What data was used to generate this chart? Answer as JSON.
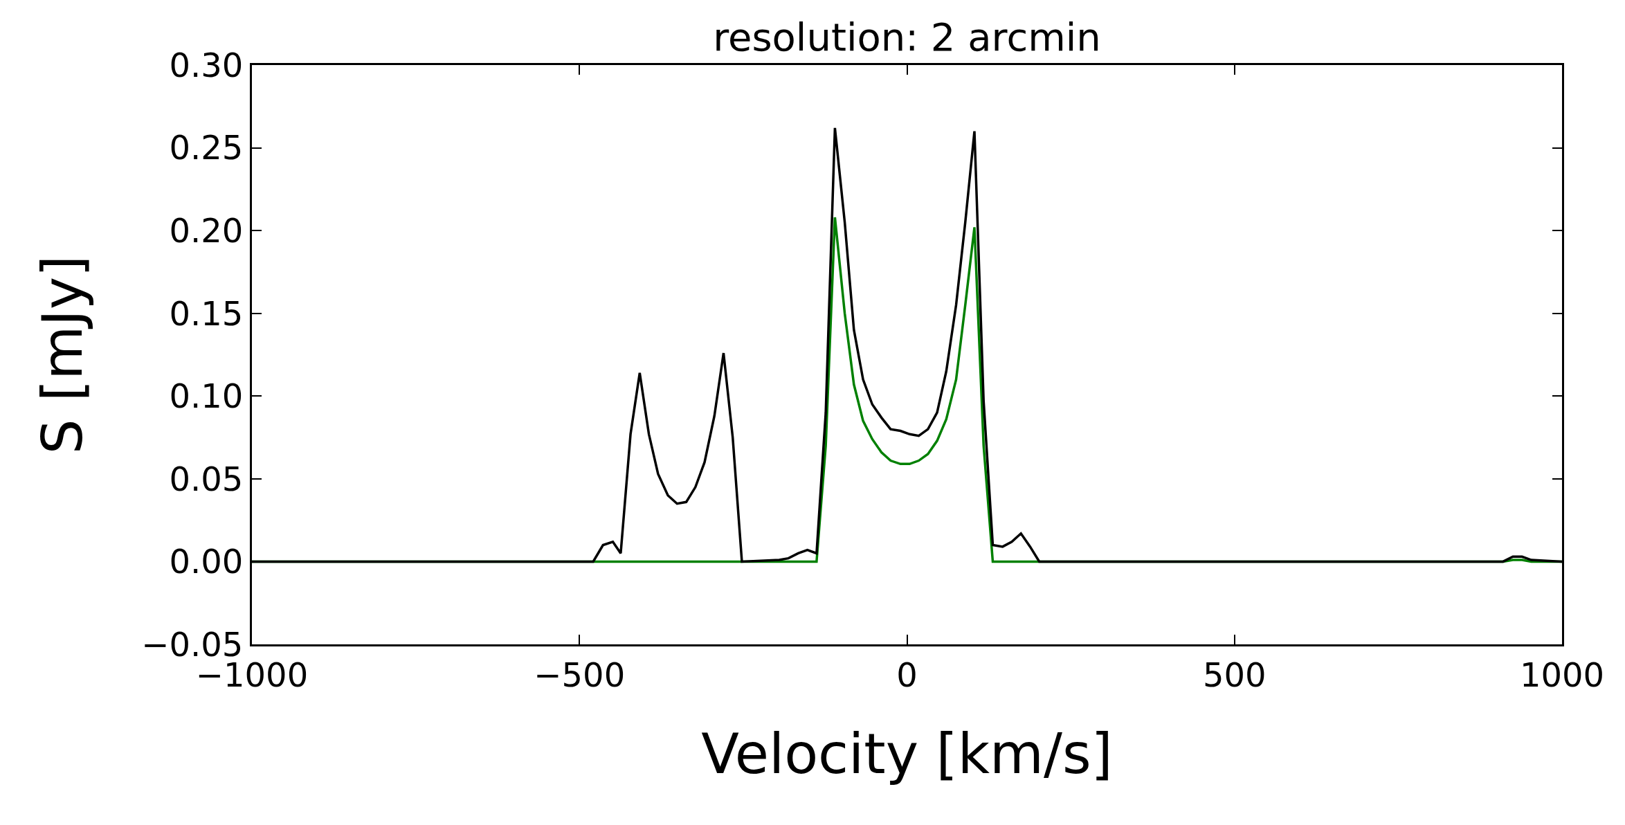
{
  "chart_data": {
    "type": "line",
    "title": "resolution: 2 arcmin",
    "xlabel": "Velocity [km/s]",
    "ylabel": "S [mJy]",
    "x": [
      -1000,
      -479,
      -464,
      -449,
      -437,
      -422,
      -408,
      -394,
      -380,
      -365,
      -351,
      -337,
      -323,
      -309,
      -294,
      -280,
      -266,
      -252,
      -195,
      -181,
      -166,
      -152,
      -138,
      -124,
      -110,
      -95,
      -81,
      -67,
      -53,
      -39,
      -25,
      -10,
      4,
      18,
      32,
      46,
      60,
      75,
      89,
      103,
      117,
      131,
      146,
      160,
      174,
      188,
      202,
      910,
      925,
      939,
      953,
      1000
    ],
    "series": [
      {
        "color": "#008000",
        "values": [
          0,
          0,
          0,
          0,
          0,
          0,
          0,
          0,
          0,
          0,
          0,
          0,
          0,
          0,
          0,
          0,
          0,
          0,
          0,
          0,
          0,
          0,
          0,
          0.07,
          0.208,
          0.15,
          0.107,
          0.085,
          0.074,
          0.066,
          0.061,
          0.059,
          0.059,
          0.061,
          0.065,
          0.073,
          0.086,
          0.11,
          0.155,
          0.202,
          0.07,
          0,
          0,
          0,
          0,
          0,
          0,
          0,
          0.001,
          0.001,
          0,
          0
        ]
      },
      {
        "color": "#000000",
        "values": [
          0,
          0,
          0.01,
          0.012,
          0.005,
          0.077,
          0.114,
          0.077,
          0.053,
          0.04,
          0.035,
          0.036,
          0.045,
          0.06,
          0.088,
          0.126,
          0.075,
          0,
          0.001,
          0.002,
          0.005,
          0.007,
          0.005,
          0.09,
          0.262,
          0.205,
          0.14,
          0.11,
          0.095,
          0.087,
          0.08,
          0.079,
          0.077,
          0.076,
          0.08,
          0.09,
          0.115,
          0.155,
          0.205,
          0.26,
          0.097,
          0.01,
          0.009,
          0.012,
          0.017,
          0.009,
          0,
          0,
          0.003,
          0.003,
          0.001,
          0
        ]
      }
    ],
    "xlim": [
      -1000,
      1000
    ],
    "xticks": [
      -1000,
      -500,
      0,
      500,
      1000
    ],
    "ylim": [
      -0.05,
      0.3
    ],
    "yticks": [
      {
        "value": -0.05,
        "label": "−0.05"
      },
      {
        "value": 0,
        "label": "0.00"
      },
      {
        "value": 0.05,
        "label": "0.05"
      },
      {
        "value": 0.1,
        "label": "0.10"
      },
      {
        "value": 0.15,
        "label": "0.15"
      },
      {
        "value": 0.2,
        "label": "0.20"
      },
      {
        "value": 0.25,
        "label": "0.25"
      },
      {
        "value": 0.3,
        "label": "0.30"
      }
    ],
    "grid": false,
    "marker": "none",
    "line_style": "solid"
  }
}
